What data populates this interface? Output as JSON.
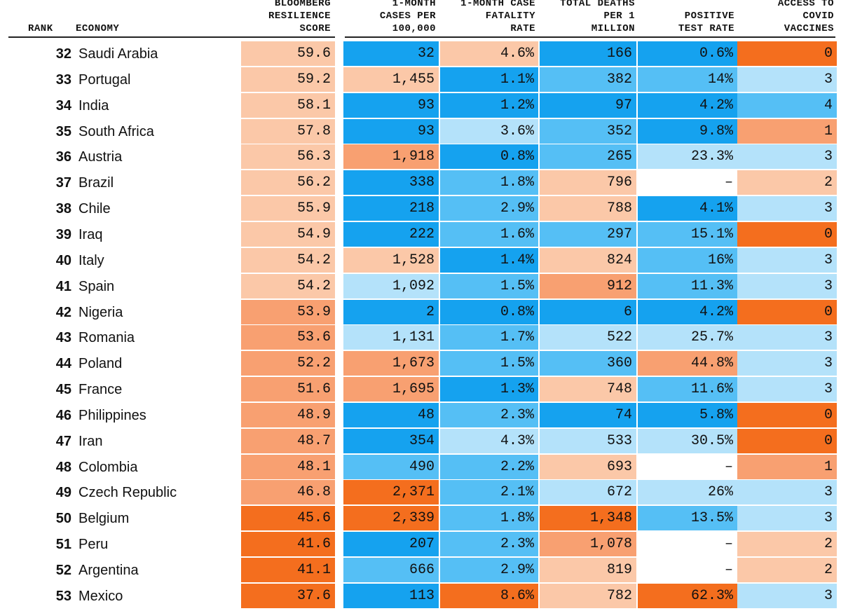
{
  "chart_data": {
    "type": "table",
    "headers": {
      "rank": "RANK",
      "economy": "ECONOMY",
      "score": "BLOOMBERG\nRESILIENCE\nSCORE",
      "cases": "1-MONTH\nCASES PER\n100,000",
      "cfr": "1-MONTH CASE\nFATALITY\nRATE",
      "deaths": "TOTAL DEATHS\nPER 1\nMILLION",
      "positive": "POSITIVE\nTEST RATE",
      "vaccines": "ACCESS TO\nCOVID\nVACCINES"
    },
    "palette": {
      "dark_orange": "#f46e1e",
      "mid_orange": "#f8a071",
      "light_orange": "#fbc8a8",
      "pale_blue": "#b4e2fa",
      "mid_blue": "#55bff5",
      "dark_blue": "#15a2ef",
      "none": "#ffffff"
    },
    "rows": [
      {
        "rank": "32",
        "economy": "Saudi Arabia",
        "score": "59.6",
        "cases": "32",
        "cfr": "4.6%",
        "deaths": "166",
        "positive": "0.6%",
        "vaccines": "0",
        "colors": [
          "light_orange",
          "dark_blue",
          "light_orange",
          "dark_blue",
          "dark_blue",
          "dark_orange"
        ]
      },
      {
        "rank": "33",
        "economy": "Portugal",
        "score": "59.2",
        "cases": "1,455",
        "cfr": "1.1%",
        "deaths": "382",
        "positive": "14%",
        "vaccines": "3",
        "colors": [
          "light_orange",
          "light_orange",
          "dark_blue",
          "mid_blue",
          "mid_blue",
          "pale_blue"
        ]
      },
      {
        "rank": "34",
        "economy": "India",
        "score": "58.1",
        "cases": "93",
        "cfr": "1.2%",
        "deaths": "97",
        "positive": "4.2%",
        "vaccines": "4",
        "colors": [
          "light_orange",
          "dark_blue",
          "dark_blue",
          "dark_blue",
          "dark_blue",
          "mid_blue"
        ]
      },
      {
        "rank": "35",
        "economy": "South Africa",
        "score": "57.8",
        "cases": "93",
        "cfr": "3.6%",
        "deaths": "352",
        "positive": "9.8%",
        "vaccines": "1",
        "colors": [
          "light_orange",
          "dark_blue",
          "pale_blue",
          "mid_blue",
          "dark_blue",
          "mid_orange"
        ]
      },
      {
        "rank": "36",
        "economy": "Austria",
        "score": "56.3",
        "cases": "1,918",
        "cfr": "0.8%",
        "deaths": "265",
        "positive": "23.3%",
        "vaccines": "3",
        "colors": [
          "light_orange",
          "mid_orange",
          "dark_blue",
          "mid_blue",
          "pale_blue",
          "pale_blue"
        ]
      },
      {
        "rank": "37",
        "economy": "Brazil",
        "score": "56.2",
        "cases": "338",
        "cfr": "1.8%",
        "deaths": "796",
        "positive": "–",
        "vaccines": "2",
        "colors": [
          "light_orange",
          "dark_blue",
          "mid_blue",
          "light_orange",
          "none",
          "light_orange"
        ]
      },
      {
        "rank": "38",
        "economy": "Chile",
        "score": "55.9",
        "cases": "218",
        "cfr": "2.9%",
        "deaths": "788",
        "positive": "4.1%",
        "vaccines": "3",
        "colors": [
          "light_orange",
          "dark_blue",
          "mid_blue",
          "light_orange",
          "dark_blue",
          "pale_blue"
        ]
      },
      {
        "rank": "39",
        "economy": "Iraq",
        "score": "54.9",
        "cases": "222",
        "cfr": "1.6%",
        "deaths": "297",
        "positive": "15.1%",
        "vaccines": "0",
        "colors": [
          "light_orange",
          "dark_blue",
          "mid_blue",
          "mid_blue",
          "mid_blue",
          "dark_orange"
        ]
      },
      {
        "rank": "40",
        "economy": "Italy",
        "score": "54.2",
        "cases": "1,528",
        "cfr": "1.4%",
        "deaths": "824",
        "positive": "16%",
        "vaccines": "3",
        "colors": [
          "light_orange",
          "light_orange",
          "dark_blue",
          "light_orange",
          "mid_blue",
          "pale_blue"
        ]
      },
      {
        "rank": "41",
        "economy": "Spain",
        "score": "54.2",
        "cases": "1,092",
        "cfr": "1.5%",
        "deaths": "912",
        "positive": "11.3%",
        "vaccines": "3",
        "colors": [
          "light_orange",
          "pale_blue",
          "mid_blue",
          "mid_orange",
          "mid_blue",
          "pale_blue"
        ]
      },
      {
        "rank": "42",
        "economy": "Nigeria",
        "score": "53.9",
        "cases": "2",
        "cfr": "0.8%",
        "deaths": "6",
        "positive": "4.2%",
        "vaccines": "0",
        "colors": [
          "mid_orange",
          "dark_blue",
          "dark_blue",
          "dark_blue",
          "dark_blue",
          "dark_orange"
        ]
      },
      {
        "rank": "43",
        "economy": "Romania",
        "score": "53.6",
        "cases": "1,131",
        "cfr": "1.7%",
        "deaths": "522",
        "positive": "25.7%",
        "vaccines": "3",
        "colors": [
          "mid_orange",
          "pale_blue",
          "mid_blue",
          "pale_blue",
          "pale_blue",
          "pale_blue"
        ]
      },
      {
        "rank": "44",
        "economy": "Poland",
        "score": "52.2",
        "cases": "1,673",
        "cfr": "1.5%",
        "deaths": "360",
        "positive": "44.8%",
        "vaccines": "3",
        "colors": [
          "mid_orange",
          "mid_orange",
          "mid_blue",
          "mid_blue",
          "mid_orange",
          "pale_blue"
        ]
      },
      {
        "rank": "45",
        "economy": "France",
        "score": "51.6",
        "cases": "1,695",
        "cfr": "1.3%",
        "deaths": "748",
        "positive": "11.6%",
        "vaccines": "3",
        "colors": [
          "mid_orange",
          "mid_orange",
          "dark_blue",
          "light_orange",
          "mid_blue",
          "pale_blue"
        ]
      },
      {
        "rank": "46",
        "economy": "Philippines",
        "score": "48.9",
        "cases": "48",
        "cfr": "2.3%",
        "deaths": "74",
        "positive": "5.8%",
        "vaccines": "0",
        "colors": [
          "mid_orange",
          "dark_blue",
          "mid_blue",
          "dark_blue",
          "dark_blue",
          "dark_orange"
        ]
      },
      {
        "rank": "47",
        "economy": "Iran",
        "score": "48.7",
        "cases": "354",
        "cfr": "4.3%",
        "deaths": "533",
        "positive": "30.5%",
        "vaccines": "0",
        "colors": [
          "mid_orange",
          "dark_blue",
          "pale_blue",
          "pale_blue",
          "pale_blue",
          "dark_orange"
        ]
      },
      {
        "rank": "48",
        "economy": "Colombia",
        "score": "48.1",
        "cases": "490",
        "cfr": "2.2%",
        "deaths": "693",
        "positive": "–",
        "vaccines": "1",
        "colors": [
          "mid_orange",
          "mid_blue",
          "mid_blue",
          "light_orange",
          "none",
          "mid_orange"
        ]
      },
      {
        "rank": "49",
        "economy": "Czech Republic",
        "score": "46.8",
        "cases": "2,371",
        "cfr": "2.1%",
        "deaths": "672",
        "positive": "26%",
        "vaccines": "3",
        "colors": [
          "mid_orange",
          "dark_orange",
          "mid_blue",
          "pale_blue",
          "pale_blue",
          "pale_blue"
        ]
      },
      {
        "rank": "50",
        "economy": "Belgium",
        "score": "45.6",
        "cases": "2,339",
        "cfr": "1.8%",
        "deaths": "1,348",
        "positive": "13.5%",
        "vaccines": "3",
        "colors": [
          "dark_orange",
          "dark_orange",
          "mid_blue",
          "dark_orange",
          "mid_blue",
          "pale_blue"
        ]
      },
      {
        "rank": "51",
        "economy": "Peru",
        "score": "41.6",
        "cases": "207",
        "cfr": "2.3%",
        "deaths": "1,078",
        "positive": "–",
        "vaccines": "2",
        "colors": [
          "dark_orange",
          "dark_blue",
          "mid_blue",
          "mid_orange",
          "none",
          "light_orange"
        ]
      },
      {
        "rank": "52",
        "economy": "Argentina",
        "score": "41.1",
        "cases": "666",
        "cfr": "2.9%",
        "deaths": "819",
        "positive": "–",
        "vaccines": "2",
        "colors": [
          "dark_orange",
          "mid_blue",
          "mid_blue",
          "light_orange",
          "none",
          "light_orange"
        ]
      },
      {
        "rank": "53",
        "economy": "Mexico",
        "score": "37.6",
        "cases": "113",
        "cfr": "8.6%",
        "deaths": "782",
        "positive": "62.3%",
        "vaccines": "3",
        "colors": [
          "dark_orange",
          "dark_blue",
          "dark_orange",
          "light_orange",
          "dark_orange",
          "pale_blue"
        ]
      }
    ]
  }
}
